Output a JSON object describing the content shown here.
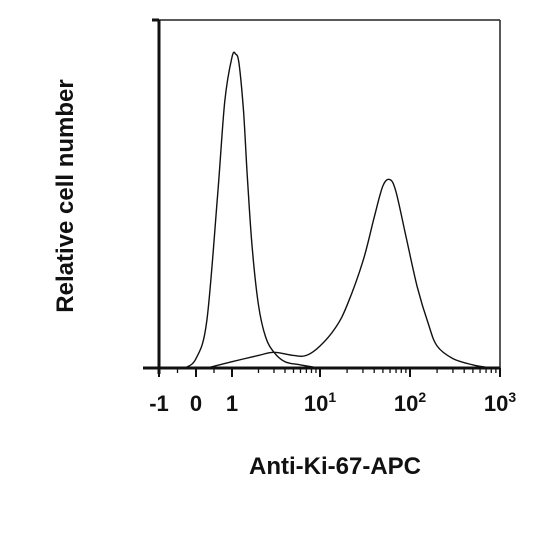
{
  "chart_data": {
    "type": "line",
    "title": "",
    "xlabel": "Anti-Ki-67-APC",
    "ylabel": "Relative cell number",
    "x_scale": "biexponential",
    "xlim": [
      -1,
      1000
    ],
    "ylim": [
      0,
      1
    ],
    "grid": false,
    "legend": "none",
    "x_ticks": [
      {
        "value": -1,
        "label": "-1"
      },
      {
        "value": 0,
        "label": "0"
      },
      {
        "value": 1,
        "label": "1"
      },
      {
        "value": 10,
        "label": "10",
        "sup": "1"
      },
      {
        "value": 100,
        "label": "10",
        "sup": "2"
      },
      {
        "value": 1000,
        "label": "10",
        "sup": "3"
      }
    ],
    "series": [
      {
        "color": "#111111",
        "x": [
          -0.3,
          0,
          0.3,
          0.6,
          0.8,
          1.0,
          1.1,
          1.2,
          1.35,
          1.5,
          1.7,
          2.0,
          2.4,
          3.0,
          4.0,
          6.0,
          10.0
        ],
        "y": [
          0.0,
          0.03,
          0.15,
          0.55,
          0.85,
          0.99,
          1.0,
          0.97,
          0.82,
          0.6,
          0.38,
          0.2,
          0.1,
          0.05,
          0.02,
          0.01,
          0.0
        ]
      },
      {
        "color": "#111111",
        "x": [
          0.3,
          1.0,
          2.0,
          3.0,
          5.0,
          7.0,
          10.0,
          15.0,
          20.0,
          30.0,
          40.0,
          50.0,
          60.0,
          70.0,
          90.0,
          120.0,
          160.0,
          200.0,
          300.0,
          500.0,
          800.0
        ],
        "y": [
          0.0,
          0.02,
          0.04,
          0.05,
          0.04,
          0.04,
          0.07,
          0.13,
          0.2,
          0.34,
          0.48,
          0.58,
          0.6,
          0.56,
          0.42,
          0.26,
          0.14,
          0.07,
          0.03,
          0.01,
          0.0
        ]
      }
    ]
  }
}
